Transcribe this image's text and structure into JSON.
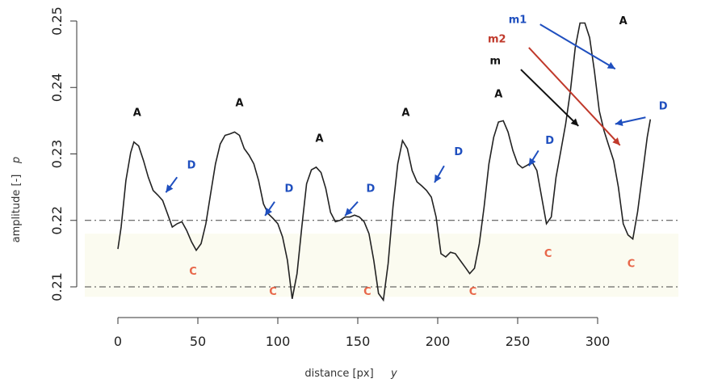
{
  "chart_data": {
    "type": "line",
    "xlabel": "distance [px]",
    "xlabel_symbol": "y",
    "ylabel": "amplitude [-]",
    "ylabel_symbol": "p",
    "xlim": [
      -8,
      340
    ],
    "ylim": [
      0.2085,
      0.2515
    ],
    "xticks": [
      0,
      50,
      100,
      150,
      200,
      250,
      300
    ],
    "yticks": [
      0.21,
      0.22,
      0.23,
      0.24,
      0.25
    ],
    "grid": false,
    "thresholds": [
      0.22,
      0.21
    ],
    "band": [
      0.2085,
      0.218
    ],
    "colors": {
      "line": "#222222",
      "black_label": "#111111",
      "blue": "#1f4fbf",
      "red": "#c0392b",
      "orange": "#e8674a",
      "band": "#fbfbf0"
    },
    "series": [
      {
        "x": [
          0,
          2,
          5,
          8,
          10,
          13,
          16,
          19,
          22,
          25,
          28,
          31,
          34,
          37,
          40,
          43,
          46,
          49,
          52,
          55,
          58,
          61,
          64,
          67,
          70,
          73,
          76,
          79,
          82,
          85,
          88,
          91,
          94,
          97,
          100,
          103,
          106,
          109,
          112,
          115,
          118,
          121,
          124,
          127,
          130,
          133,
          136,
          139,
          142,
          145,
          148,
          151,
          154,
          157,
          160,
          163,
          166,
          169,
          172,
          175,
          178,
          181,
          184,
          187,
          190,
          193,
          196,
          199,
          202,
          205,
          208,
          211,
          214,
          217,
          220,
          223,
          226,
          229,
          232,
          235,
          238,
          241,
          244,
          247,
          250,
          253,
          256,
          259,
          262,
          265,
          268,
          271,
          274,
          277,
          280,
          283,
          286,
          289,
          292,
          295,
          298,
          301,
          304,
          307,
          310,
          313,
          316,
          319,
          322,
          325,
          328,
          331,
          333
        ],
        "y": [
          0.2157,
          0.219,
          0.226,
          0.2302,
          0.2318,
          0.2312,
          0.229,
          0.2265,
          0.2245,
          0.2238,
          0.223,
          0.221,
          0.219,
          0.2195,
          0.2198,
          0.2185,
          0.2168,
          0.2155,
          0.2165,
          0.2195,
          0.224,
          0.2285,
          0.2315,
          0.2328,
          0.233,
          0.2333,
          0.2328,
          0.2308,
          0.2298,
          0.2285,
          0.226,
          0.2225,
          0.221,
          0.2203,
          0.2195,
          0.2175,
          0.214,
          0.2082,
          0.212,
          0.219,
          0.2255,
          0.2276,
          0.228,
          0.2272,
          0.2248,
          0.2212,
          0.2198,
          0.22,
          0.2205,
          0.2205,
          0.2208,
          0.2205,
          0.2198,
          0.218,
          0.214,
          0.209,
          0.208,
          0.2135,
          0.222,
          0.2285,
          0.232,
          0.2308,
          0.2275,
          0.2258,
          0.2252,
          0.2245,
          0.2235,
          0.2205,
          0.215,
          0.2145,
          0.2152,
          0.215,
          0.214,
          0.213,
          0.212,
          0.2128,
          0.2165,
          0.222,
          0.2285,
          0.2325,
          0.2348,
          0.235,
          0.2333,
          0.2305,
          0.2285,
          0.2279,
          0.2283,
          0.2288,
          0.2275,
          0.2235,
          0.2195,
          0.2205,
          0.2265,
          0.2305,
          0.2345,
          0.2395,
          0.246,
          0.2497,
          0.2497,
          0.2475,
          0.2425,
          0.2365,
          0.2335,
          0.2312,
          0.229,
          0.225,
          0.2195,
          0.2178,
          0.2172,
          0.2213,
          0.2268,
          0.2325,
          0.2352
        ]
      }
    ],
    "annotations": [
      {
        "text": "A",
        "color": "#111111",
        "x": 12,
        "y": 0.2357
      },
      {
        "text": "A",
        "color": "#111111",
        "x": 76,
        "y": 0.2372
      },
      {
        "text": "A",
        "color": "#111111",
        "x": 126,
        "y": 0.2318
      },
      {
        "text": "A",
        "color": "#111111",
        "x": 180,
        "y": 0.2357
      },
      {
        "text": "A",
        "color": "#111111",
        "x": 238,
        "y": 0.2385
      },
      {
        "text": "A",
        "color": "#111111",
        "x": 316,
        "y": 0.2495
      },
      {
        "text": "D",
        "color": "#1f4fbf",
        "x": 46,
        "y": 0.2278
      },
      {
        "text": "D",
        "color": "#1f4fbf",
        "x": 107,
        "y": 0.2243
      },
      {
        "text": "D",
        "color": "#1f4fbf",
        "x": 158,
        "y": 0.2243
      },
      {
        "text": "D",
        "color": "#1f4fbf",
        "x": 213,
        "y": 0.2298
      },
      {
        "text": "D",
        "color": "#1f4fbf",
        "x": 270,
        "y": 0.2315
      },
      {
        "text": "D",
        "color": "#1f4fbf",
        "x": 341,
        "y": 0.2367
      },
      {
        "text": "C",
        "color": "#e8674a",
        "x": 47,
        "y": 0.2118
      },
      {
        "text": "C",
        "color": "#e8674a",
        "x": 97,
        "y": 0.2088
      },
      {
        "text": "C",
        "color": "#e8674a",
        "x": 156,
        "y": 0.2088
      },
      {
        "text": "C",
        "color": "#e8674a",
        "x": 222,
        "y": 0.2088
      },
      {
        "text": "C",
        "color": "#e8674a",
        "x": 269,
        "y": 0.2145
      },
      {
        "text": "C",
        "color": "#e8674a",
        "x": 321,
        "y": 0.213
      },
      {
        "text": "m1",
        "color": "#1f4fbf",
        "x": 250,
        "y": 0.2497
      },
      {
        "text": "m2",
        "color": "#c0392b",
        "x": 237,
        "y": 0.2468
      },
      {
        "text": "m",
        "color": "#111111",
        "x": 236,
        "y": 0.2435
      }
    ],
    "arrows": [
      {
        "color": "#1f4fbf",
        "from": [
          37,
          0.2265
        ],
        "to": [
          30,
          0.2242
        ]
      },
      {
        "color": "#1f4fbf",
        "from": [
          98,
          0.2228
        ],
        "to": [
          92,
          0.2207
        ]
      },
      {
        "color": "#1f4fbf",
        "from": [
          150,
          0.2228
        ],
        "to": [
          142,
          0.2207
        ]
      },
      {
        "color": "#1f4fbf",
        "from": [
          204,
          0.2282
        ],
        "to": [
          198,
          0.2257
        ]
      },
      {
        "color": "#1f4fbf",
        "from": [
          263,
          0.2305
        ],
        "to": [
          257,
          0.2282
        ]
      },
      {
        "color": "#1f4fbf",
        "from": [
          330,
          0.2355
        ],
        "to": [
          311,
          0.2345
        ]
      },
      {
        "color": "#1f4fbf",
        "from": [
          264,
          0.2495
        ],
        "to": [
          311,
          0.2428
        ]
      },
      {
        "color": "#c0392b",
        "from": [
          257,
          0.246
        ],
        "to": [
          314,
          0.2313
        ]
      },
      {
        "color": "#111111",
        "from": [
          252,
          0.2427
        ],
        "to": [
          288,
          0.2342
        ]
      }
    ]
  }
}
